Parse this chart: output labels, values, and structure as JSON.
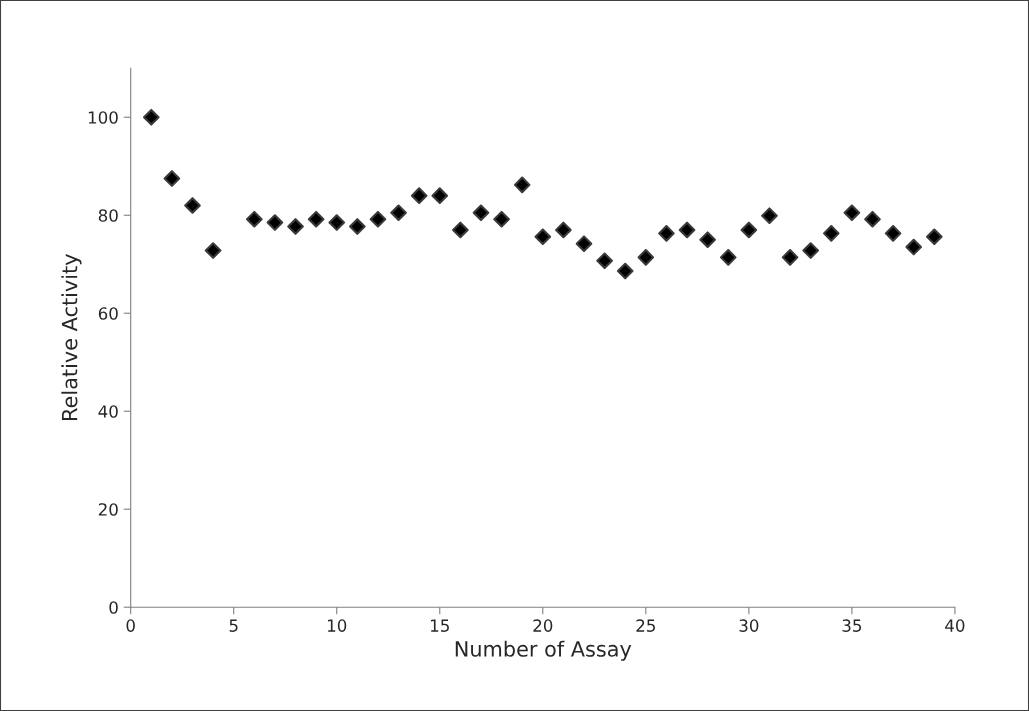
{
  "chart_data": {
    "type": "scatter",
    "xlabel": "Number of Assay",
    "ylabel": "Relative Activity",
    "x": [
      1,
      2,
      3,
      4,
      6,
      7,
      8,
      9,
      10,
      11,
      12,
      13,
      14,
      15,
      16,
      17,
      18,
      19,
      20,
      21,
      22,
      23,
      24,
      25,
      26,
      27,
      28,
      29,
      30,
      31,
      32,
      33,
      34,
      35,
      36,
      37,
      38,
      39
    ],
    "series": [
      {
        "color": "#000000",
        "values": [
          100,
          87.5,
          82,
          72.8,
          79.2,
          78.5,
          77.7,
          79.2,
          78.5,
          77.7,
          79.2,
          80.5,
          84,
          84,
          77,
          80.5,
          79.2,
          86.2,
          75.6,
          77,
          74.2,
          70.7,
          68.6,
          71.4,
          76.3,
          77,
          75,
          71.4,
          77,
          79.9,
          71.4,
          72.8,
          76.3,
          80.5,
          79.2,
          76.3,
          73.5,
          75.6
        ]
      }
    ],
    "marker": "diamond",
    "grid": false,
    "legend": false,
    "xlim": [
      0,
      40
    ],
    "xticks": [
      0,
      5,
      10,
      15,
      20,
      25,
      30,
      35,
      40
    ],
    "ylim": [
      0,
      110
    ],
    "yticks": [
      0,
      20,
      40,
      60,
      80,
      100
    ]
  }
}
